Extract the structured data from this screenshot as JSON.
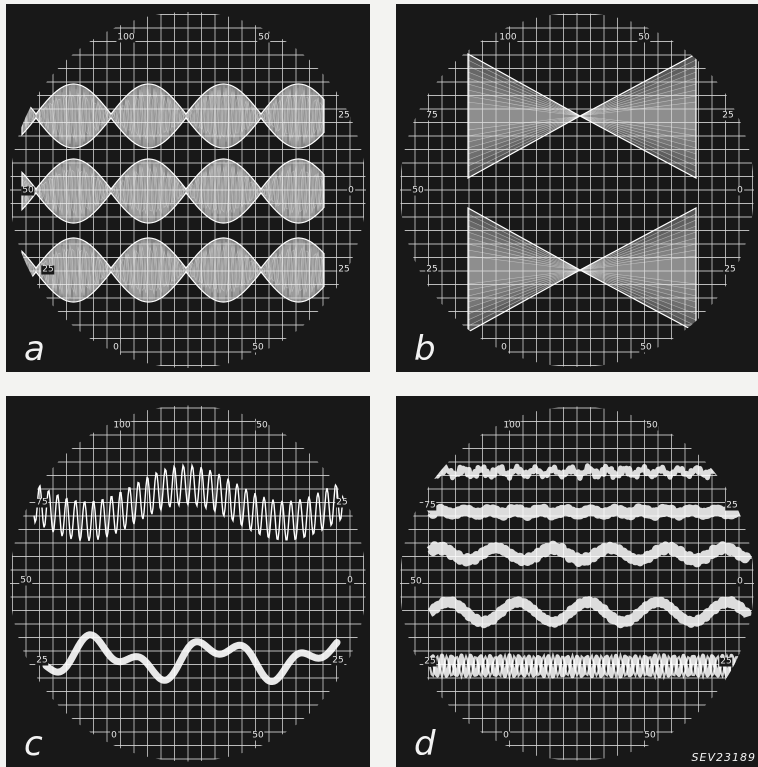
{
  "figure_code": "SEV23189",
  "panels": [
    {
      "id": "a",
      "letter": "a",
      "trace": "beat-envelope",
      "scale_labels": {
        "top_left": "100",
        "top_right": "50",
        "upper_right": "25",
        "left": "50",
        "center_right": "0",
        "lower_left": "25",
        "lower_right": "25",
        "bottom_left": "0",
        "bottom_right": "50"
      }
    },
    {
      "id": "b",
      "letter": "b",
      "trace": "crossed-envelope",
      "scale_labels": {
        "top_left": "100",
        "top_right": "50",
        "upper_left": "75",
        "upper_right": "25",
        "left": "50",
        "center_right": "0",
        "lower_left": "25",
        "lower_right": "25",
        "bottom_left": "0",
        "bottom_right": "50"
      }
    },
    {
      "id": "c",
      "letter": "c",
      "trace": "modulated-wave",
      "scale_labels": {
        "top_left": "100",
        "top_right": "50",
        "upper_left": "75",
        "upper_right": "25",
        "left": "50",
        "center_right": "0",
        "lower_left": "25",
        "lower_right": "25",
        "bottom_left": "0",
        "bottom_right": "50"
      }
    },
    {
      "id": "d",
      "letter": "d",
      "trace": "noisy-waves",
      "scale_labels": {
        "top_left": "100",
        "top_right": "50",
        "upper_left": "75",
        "upper_right": "25",
        "left": "50",
        "center_right": "0",
        "lower_left": "25",
        "lower_right": "25",
        "bottom_left": "0",
        "bottom_right": "50"
      }
    }
  ],
  "colors": {
    "background": "#181818",
    "grid": "#d8d8d8",
    "trace": "#ffffff"
  }
}
